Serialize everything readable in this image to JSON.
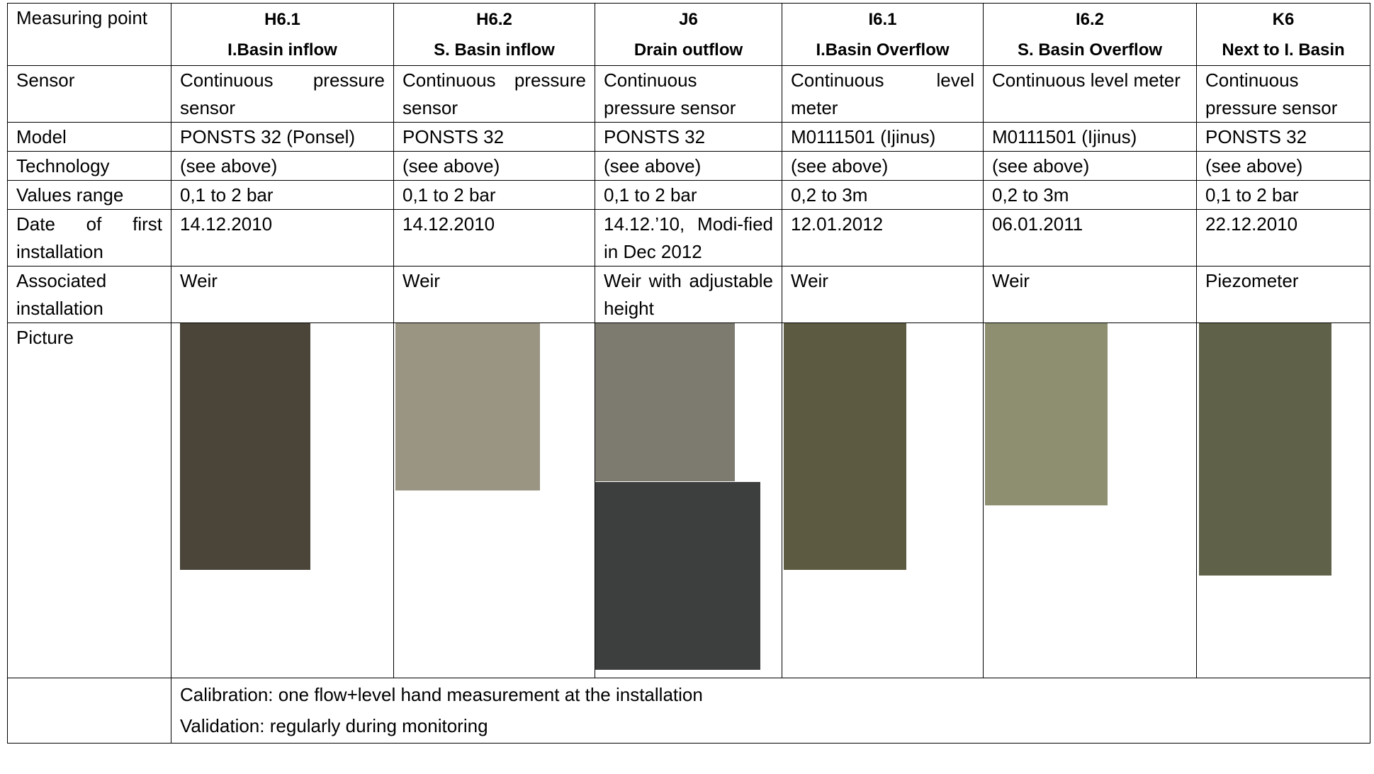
{
  "header": {
    "label": "Measuring point",
    "columns": [
      {
        "id": "H6.1",
        "name": "I.Basin inflow"
      },
      {
        "id": "H6.2",
        "name": "S. Basin inflow"
      },
      {
        "id": "J6",
        "name": "Drain outflow"
      },
      {
        "id": "I6.1",
        "name": "I.Basin Overflow"
      },
      {
        "id": "I6.2",
        "name": "S. Basin Overflow"
      },
      {
        "id": "K6",
        "name": "Next to I. Basin"
      }
    ]
  },
  "rows": [
    {
      "label": "Sensor",
      "cells": [
        "Continuous pressure sensor",
        "Continuous pressure sensor",
        "Continuous pressure sensor",
        "Continuous level meter",
        "Continuous level meter",
        "Continuous pressure sensor"
      ]
    },
    {
      "label": "Model",
      "cells": [
        "PONSTS 32 (Ponsel)",
        "PONSTS 32",
        "PONSTS 32",
        "M0111501 (Ijinus)",
        "M0111501 (Ijinus)",
        "PONSTS 32"
      ]
    },
    {
      "label": "Technology",
      "cells": [
        "(see above)",
        "(see above)",
        "(see above)",
        "(see above)",
        "(see above)",
        "(see above)"
      ]
    },
    {
      "label": "Values range",
      "cells": [
        "0,1 to 2 bar",
        "0,1 to 2 bar",
        "0,1 to 2 bar",
        "0,2 to 3m",
        "0,2 to 3m",
        "0,1 to 2 bar"
      ]
    },
    {
      "label": "Date of first installation",
      "cells": [
        "14.12.2010",
        "14.12.2010",
        "14.12.’10, Modi-fied in Dec 2012",
        "12.01.2012",
        "06.01.2011",
        "22.12.2010"
      ]
    },
    {
      "label": "Associated installation",
      "cells": [
        "Weir",
        "Weir",
        "Weir with adjustable height",
        "Weir",
        "Weir",
        "Piezometer"
      ]
    }
  ],
  "picture_label": "Picture",
  "notes": [
    "Calibration: one flow+level hand measurement at the installation",
    "Validation: regularly during monitoring"
  ]
}
